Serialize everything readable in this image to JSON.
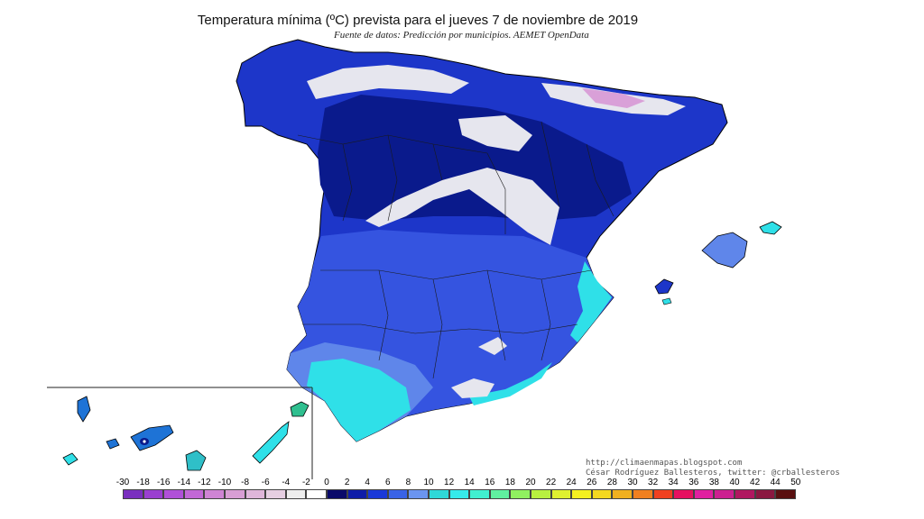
{
  "title": "Temperatura mínima (ºC) prevista para el jueves 7 de noviembre de 2019",
  "subtitle": "Fuente de datos: Predicción por municipios. AEMET OpenData",
  "credits": {
    "blog": "http://climaenmapas.blogspot.com",
    "author": "César Rodríguez Ballesteros, twitter: @crballesteros"
  },
  "legend": {
    "labels": [
      "-30",
      "-18",
      "-16",
      "-14",
      "-12",
      "-10",
      "-8",
      "-6",
      "-4",
      "-2",
      "0",
      "2",
      "4",
      "6",
      "8",
      "10",
      "12",
      "14",
      "16",
      "18",
      "20",
      "22",
      "24",
      "26",
      "28",
      "30",
      "32",
      "34",
      "36",
      "38",
      "40",
      "42",
      "44",
      "50"
    ],
    "colors": [
      "#7a2fbf",
      "#9a3fd0",
      "#b050d8",
      "#c268d6",
      "#cf84d4",
      "#d89ed4",
      "#dfb6da",
      "#e6cfe2",
      "#eeeeee",
      "#ffffff",
      "#0a0a6a",
      "#0f1da8",
      "#1a38d8",
      "#3a63e6",
      "#6b95f0",
      "#2fd8d8",
      "#36eaea",
      "#40f0d0",
      "#60f0a0",
      "#90f060",
      "#b8f040",
      "#dff030",
      "#f4f020",
      "#f4d820",
      "#f0b020",
      "#f08020",
      "#f04020",
      "#e61060",
      "#e020a0",
      "#cc2090",
      "#b01860",
      "#8a1840",
      "#5a1010"
    ]
  },
  "map_colors": {
    "deep_blue": "#0a1a8c",
    "blue": "#1d36c9",
    "mid_blue": "#3554e0",
    "light_blue": "#5f86ea",
    "cyan": "#2fe0e8",
    "snow": "#e6e6ee",
    "pink": "#d9a0d8",
    "canarias_blue": "#1e73d6"
  }
}
